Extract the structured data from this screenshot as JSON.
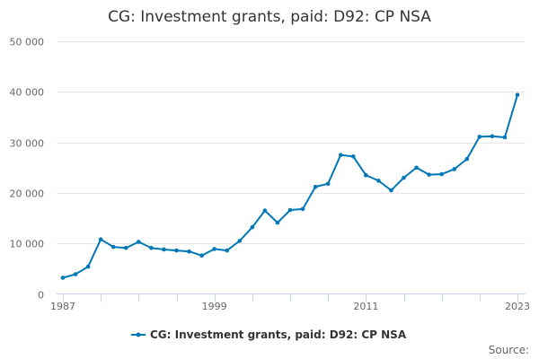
{
  "chart_data": {
    "type": "line",
    "title": "CG: Investment grants, paid: D92: CP NSA",
    "xlabel": "",
    "ylabel": "",
    "x": [
      1987,
      1988,
      1989,
      1990,
      1991,
      1992,
      1993,
      1994,
      1995,
      1996,
      1997,
      1998,
      1999,
      2000,
      2001,
      2002,
      2003,
      2004,
      2005,
      2006,
      2007,
      2008,
      2009,
      2010,
      2011,
      2012,
      2013,
      2014,
      2015,
      2016,
      2017,
      2018,
      2019,
      2020,
      2021,
      2022,
      2023
    ],
    "series": [
      {
        "name": "CG: Investment grants, paid: D92: CP NSA",
        "color": "#0077b6",
        "values": [
          3200,
          3900,
          5400,
          10800,
          9300,
          9100,
          10300,
          9100,
          8800,
          8600,
          8400,
          7600,
          8900,
          8600,
          10500,
          13200,
          16500,
          14100,
          16600,
          16800,
          21200,
          21800,
          27500,
          27200,
          23500,
          22400,
          20500,
          23000,
          25000,
          23600,
          23700,
          24700,
          26700,
          31100,
          31200,
          31000,
          39400
        ]
      }
    ],
    "xlim": [
      1987,
      2023
    ],
    "ylim": [
      0,
      50000
    ],
    "x_ticks": [
      "1987",
      "1999",
      "2011",
      "2023"
    ],
    "y_ticks": [
      "0",
      "10 000",
      "20 000",
      "30 000",
      "40 000",
      "50 000"
    ],
    "grid": true,
    "legend_position": "bottom-center"
  },
  "source_label": "Source:"
}
